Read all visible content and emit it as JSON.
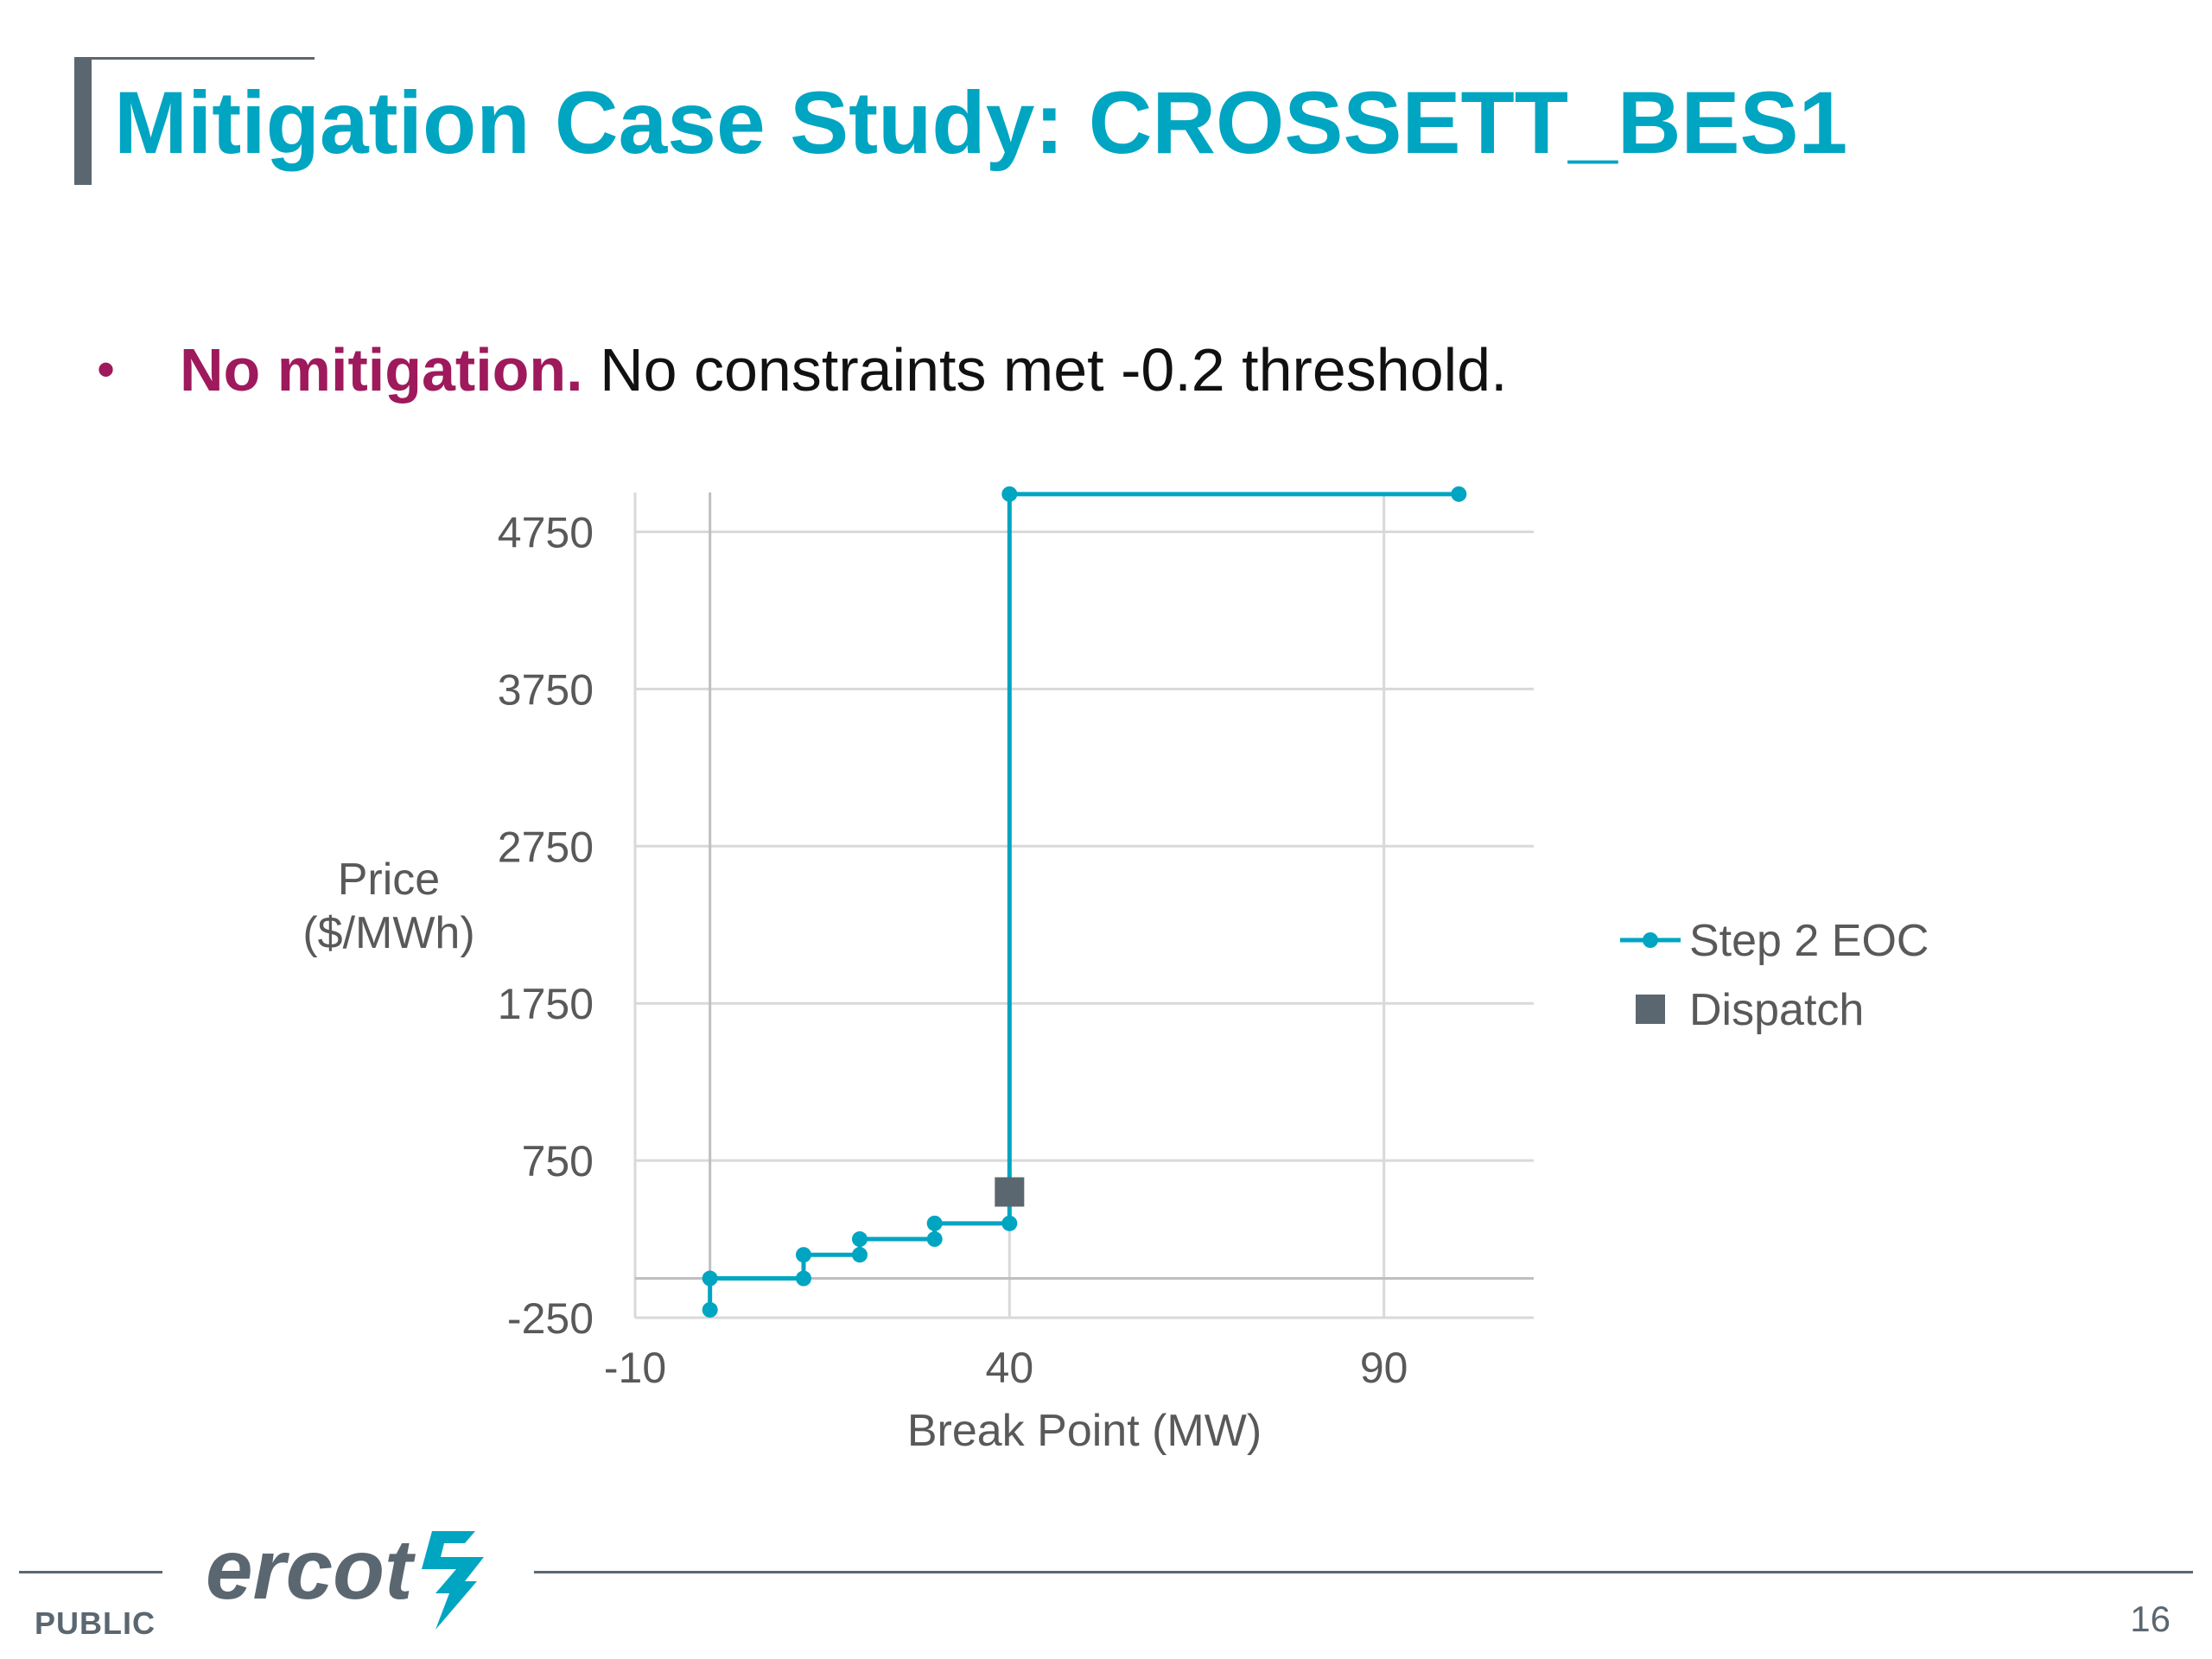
{
  "slide": {
    "title": "Mitigation Case Study: CROSSETT_BES1",
    "bullet_marker": "•",
    "bullet_strong": "No mitigation.",
    "bullet_rest": " No constraints met -0.2 threshold."
  },
  "footer": {
    "classification": "PUBLIC",
    "page_number": "16",
    "logo_text": "ercot"
  },
  "colors": {
    "title": "#00a5c2",
    "accent": "#9e1a5c",
    "series_line": "#00a5c2",
    "dispatch": "#5b6770",
    "grid": "#d9d9d9"
  },
  "chart_data": {
    "type": "line",
    "title": "",
    "xlabel": "Break Point (MW)",
    "ylabel_lines": [
      "Price",
      "($/MWh)"
    ],
    "xlim": [
      -10,
      110
    ],
    "ylim": [
      -250,
      5000
    ],
    "xticks": [
      -10,
      40,
      90
    ],
    "yticks": [
      -250,
      750,
      1750,
      2750,
      3750,
      4750
    ],
    "grid": true,
    "legend_position": "right",
    "series": [
      {
        "name": "Step 2 EOC",
        "marker": "circle",
        "points": [
          [
            0,
            -200
          ],
          [
            0,
            0
          ],
          [
            12.5,
            0
          ],
          [
            12.5,
            150
          ],
          [
            20,
            150
          ],
          [
            20,
            250
          ],
          [
            30,
            250
          ],
          [
            30,
            350
          ],
          [
            40,
            350
          ],
          [
            40,
            4990
          ],
          [
            100,
            4990
          ]
        ]
      },
      {
        "name": "Dispatch",
        "marker": "square",
        "points": [
          [
            40,
            550
          ]
        ]
      }
    ]
  }
}
